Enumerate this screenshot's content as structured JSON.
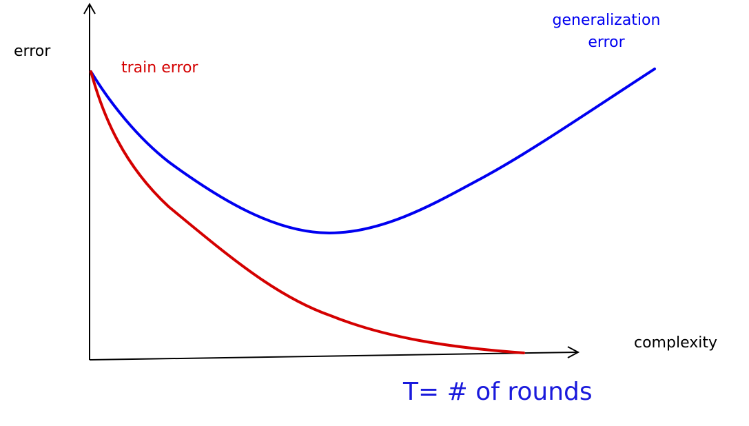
{
  "labels": {
    "y_axis": "error",
    "x_axis": "complexity",
    "train_curve": "train error",
    "generalization_curve_line1": "generalization",
    "generalization_curve_line2": "error",
    "caption": "T= # of rounds"
  },
  "colors": {
    "axis": "#000000",
    "train_curve": "#d40000",
    "generalization_curve": "#0000f0",
    "caption": "#1a1adc"
  },
  "curves": {
    "description_shape": "train error decreases monotonically; generalization error decreases then increases (U-shape)"
  }
}
